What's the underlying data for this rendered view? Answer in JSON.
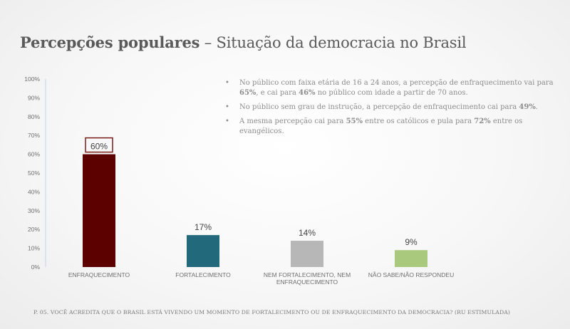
{
  "title": {
    "bold": "Percepções populares",
    "dash": " – ",
    "rest": "Situação da democracia no Brasil"
  },
  "bullets": [
    {
      "parts": [
        {
          "t": "No público com faixa etária de 16 a 24 anos, a percepção de enfraquecimento vai para ",
          "b": false
        },
        {
          "t": "65%",
          "b": true
        },
        {
          "t": ", e cai para ",
          "b": false
        },
        {
          "t": "46%",
          "b": true
        },
        {
          "t": " no público com idade a partir de 70 anos.",
          "b": false
        }
      ]
    },
    {
      "parts": [
        {
          "t": "No público sem grau de instrução, a percepção de enfraquecimento cai para ",
          "b": false
        },
        {
          "t": "49%",
          "b": true
        },
        {
          "t": ".",
          "b": false
        }
      ]
    },
    {
      "parts": [
        {
          "t": "A mesma percepção cai para ",
          "b": false
        },
        {
          "t": "55%",
          "b": true
        },
        {
          "t": " entre os católicos e pula para ",
          "b": false
        },
        {
          "t": "72%",
          "b": true
        },
        {
          "t": " entre os evangélicos.",
          "b": false
        }
      ]
    }
  ],
  "footer": "P. 05. VOCÊ ACREDITA QUE O BRASIL ESTÁ VIVENDO UM MOMENTO DE FORTALECIMENTO OU DE ENFRAQUECIMENTO DA DEMOCRACIA? (RU ESTIMULADA)",
  "chart_data": {
    "type": "bar",
    "title": "Situação da democracia no Brasil",
    "xlabel": "",
    "ylabel": "",
    "ylim": [
      0,
      100
    ],
    "yticks": [
      0,
      10,
      20,
      30,
      40,
      50,
      60,
      70,
      80,
      90,
      100
    ],
    "ytick_labels": [
      "0%",
      "10%",
      "20%",
      "30%",
      "40%",
      "50%",
      "60%",
      "70%",
      "80%",
      "90%",
      "100%"
    ],
    "categories": [
      [
        "ENFRAQUECIMENTO"
      ],
      [
        "FORTALECIMENTO"
      ],
      [
        "NEM FORTALECIMENTO, NEM",
        "ENFRAQUECIMENTO"
      ],
      [
        "NÃO SABE/NÃO RESPONDEU"
      ]
    ],
    "values": [
      60,
      17,
      14,
      9
    ],
    "labels": [
      "60%",
      "17%",
      "14%",
      "9%"
    ],
    "colors": [
      "#5c0000",
      "#22697c",
      "#b7b7b7",
      "#a9c97c"
    ],
    "highlight_index": 0,
    "highlight_color": "#7a1a1a",
    "axis_color": "#c8d2e6",
    "tick_color": "#6f6f6f",
    "label_color": "#444444"
  }
}
